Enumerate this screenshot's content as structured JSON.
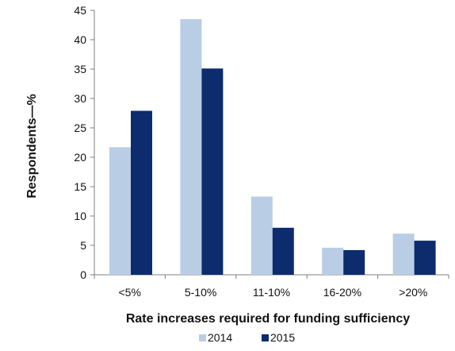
{
  "chart_data": {
    "type": "bar",
    "title": "",
    "xlabel": "Rate increases required for funding sufficiency",
    "ylabel": "Respondents—%",
    "categories": [
      "<5%",
      "5-10%",
      "11-10%",
      "16-20%",
      ">20%"
    ],
    "series": [
      {
        "name": "2014",
        "color": "#b9cde5",
        "values": [
          21.7,
          43.5,
          13.3,
          4.6,
          7.0
        ]
      },
      {
        "name": "2015",
        "color": "#0c2c6e",
        "values": [
          27.9,
          35.1,
          8.0,
          4.2,
          5.8
        ]
      }
    ],
    "ylim": [
      0,
      45
    ],
    "yticks": [
      0,
      5,
      10,
      15,
      20,
      25,
      30,
      35,
      40,
      45
    ],
    "grid": false,
    "legend_position": "bottom"
  }
}
